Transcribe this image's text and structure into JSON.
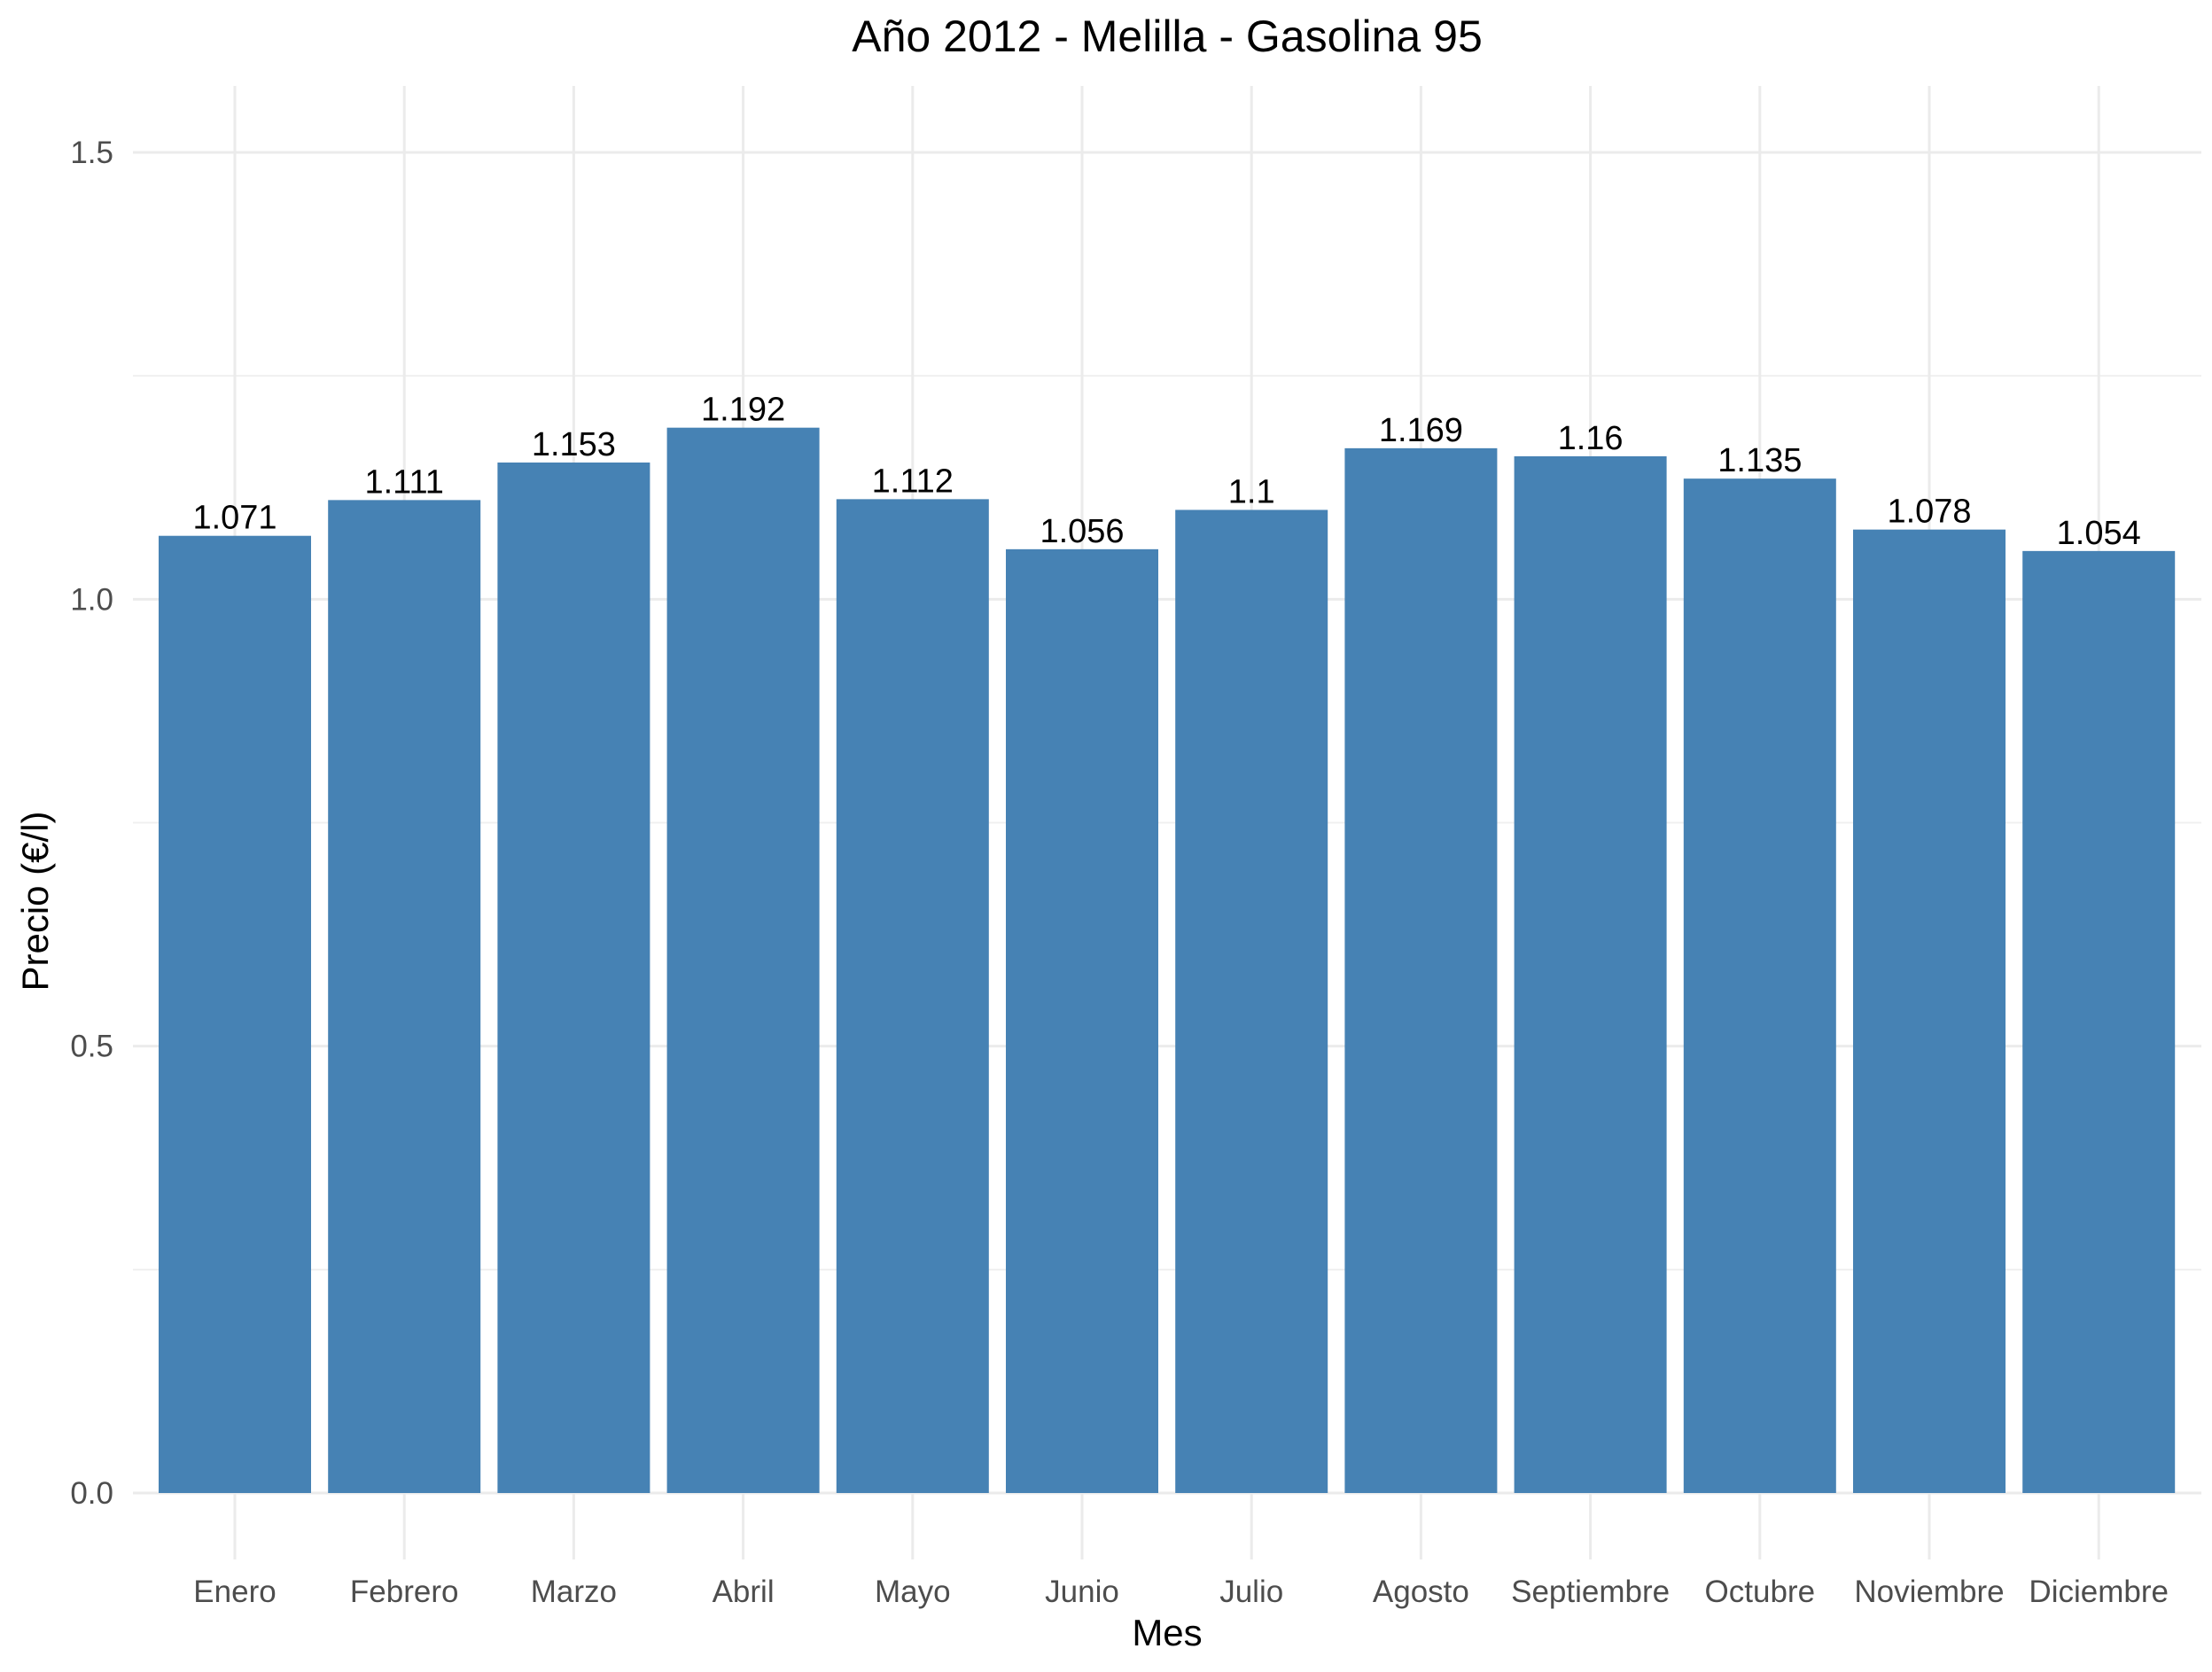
{
  "chart_data": {
    "type": "bar",
    "title": "Año 2012 - Melilla - Gasolina 95",
    "xlabel": "Mes",
    "ylabel": "Precio (€/l)",
    "categories": [
      "Enero",
      "Febrero",
      "Marzo",
      "Abril",
      "Mayo",
      "Junio",
      "Julio",
      "Agosto",
      "Septiembre",
      "Octubre",
      "Noviembre",
      "Diciembre"
    ],
    "values": [
      1.071,
      1.111,
      1.153,
      1.192,
      1.112,
      1.056,
      1.1,
      1.169,
      1.16,
      1.135,
      1.078,
      1.054
    ],
    "value_labels": [
      "1.071",
      "1.111",
      "1.153",
      "1.192",
      "1.112",
      "1.056",
      "1.1",
      "1.169",
      "1.16",
      "1.135",
      "1.078",
      "1.054"
    ],
    "yticks": [
      "0.0",
      "0.5",
      "1.0",
      "1.5"
    ],
    "ylim": [
      0,
      1.5
    ],
    "grid": true,
    "bar_color": "#4682b4"
  }
}
